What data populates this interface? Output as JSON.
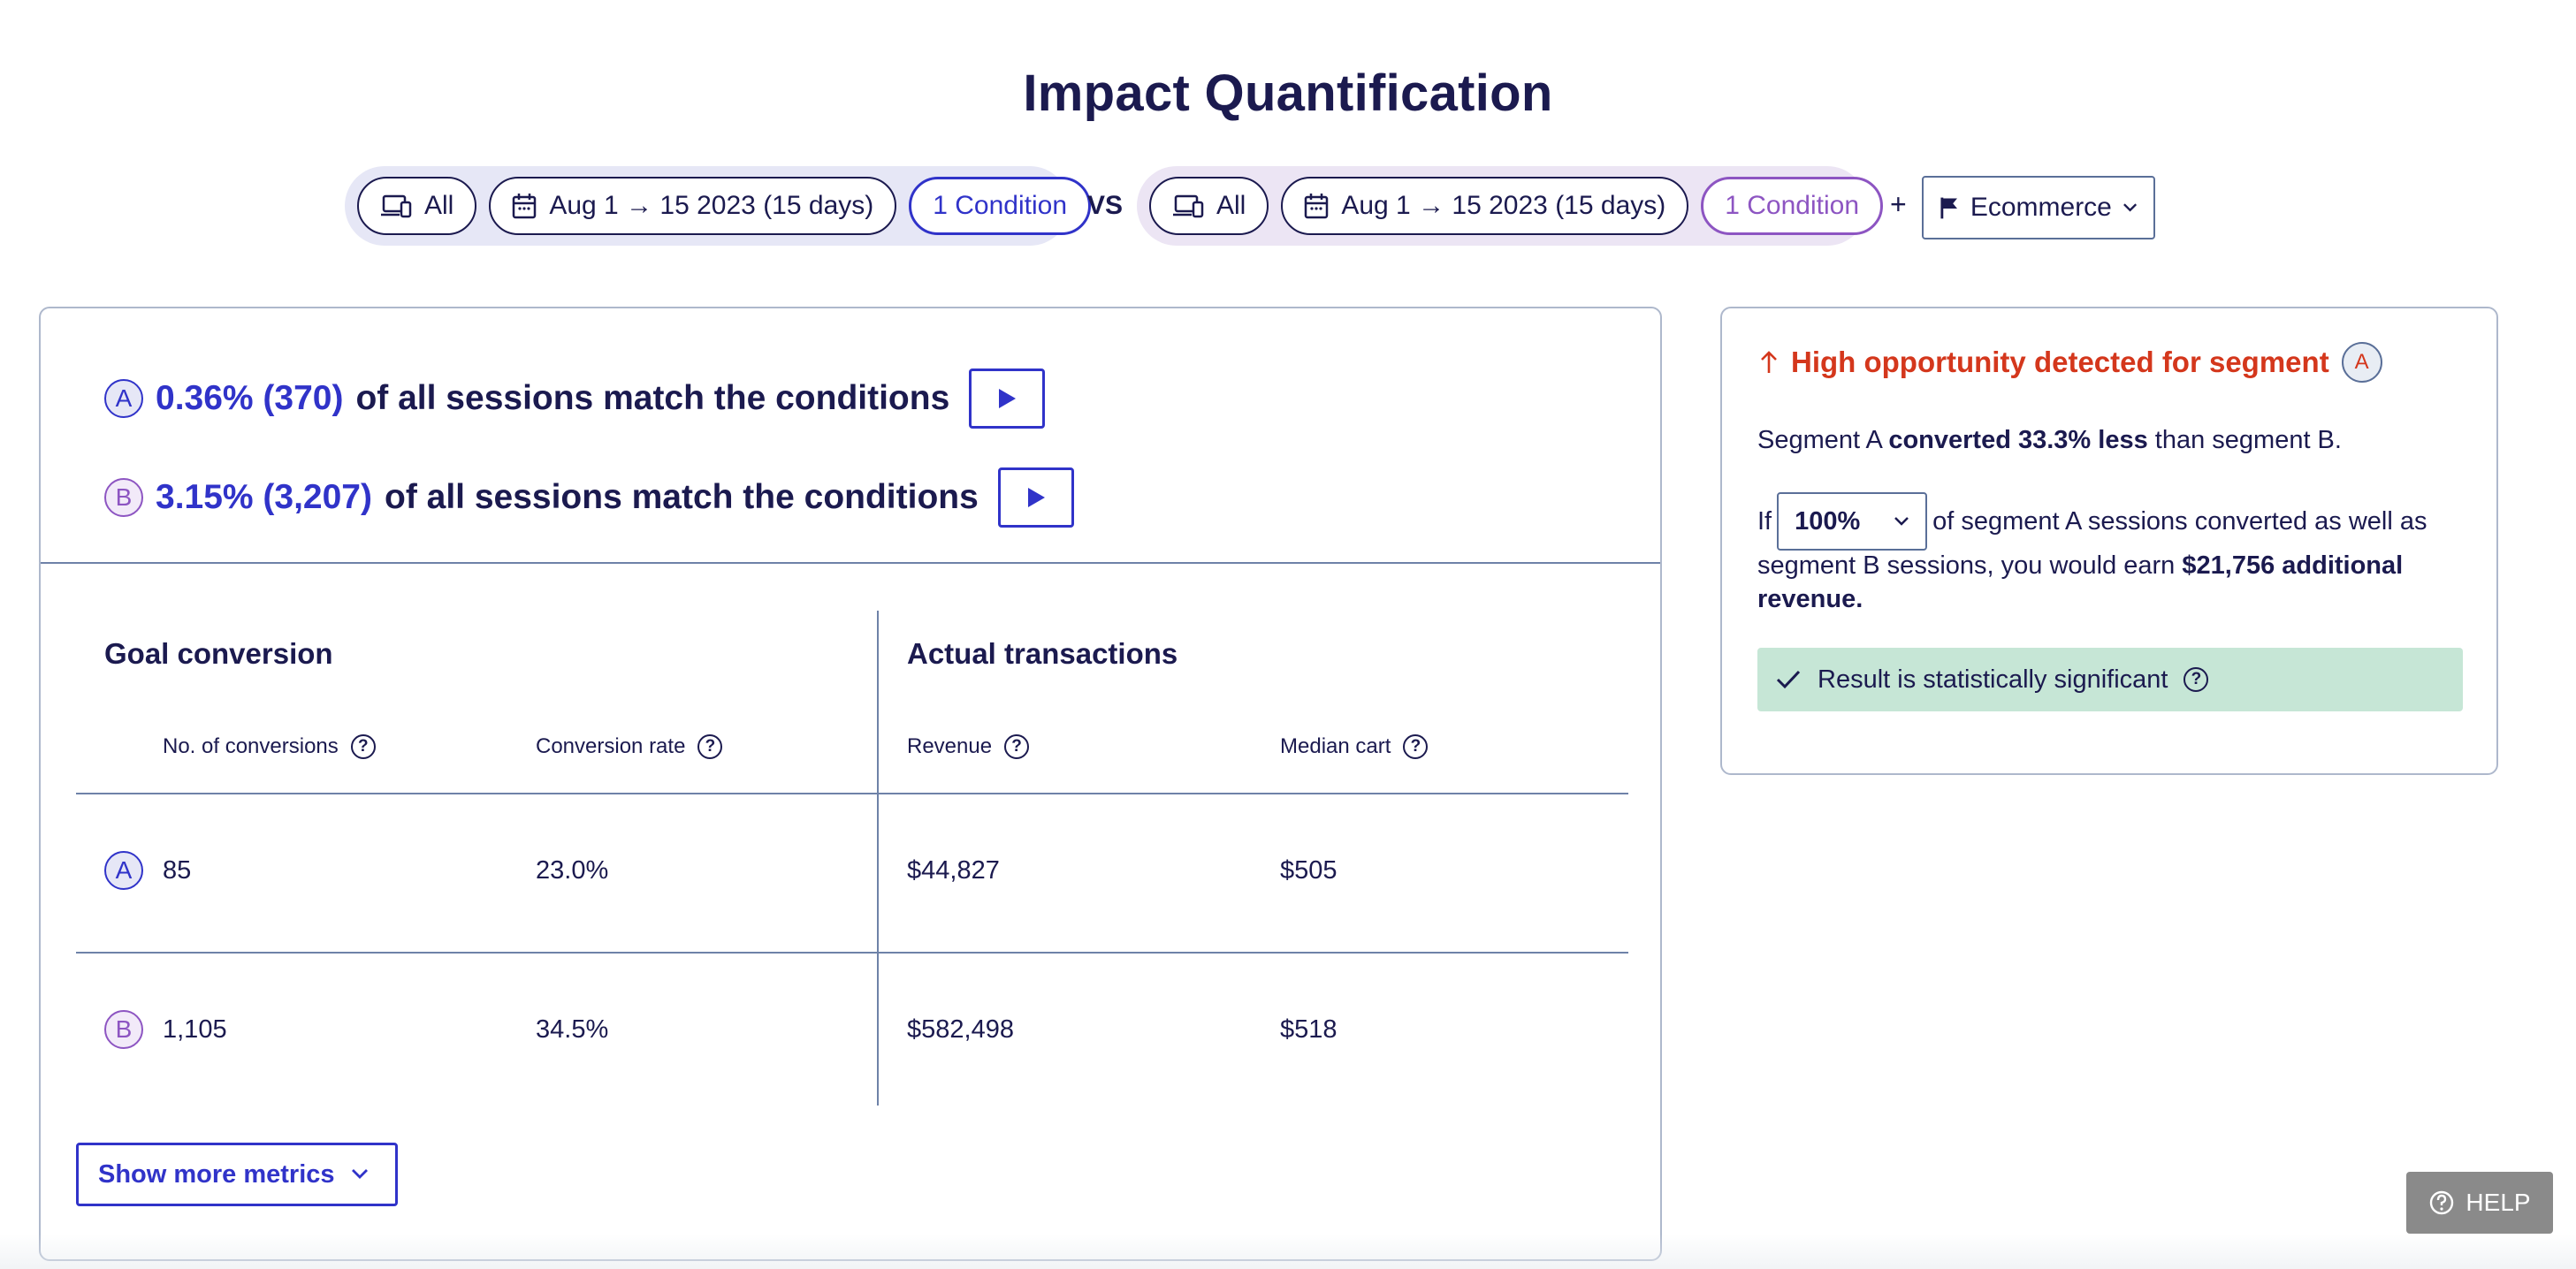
{
  "page": {
    "title": "Impact Quantification"
  },
  "filters": {
    "segment_a": {
      "device": "All",
      "date_range": "Aug 1 → 15 2023 (15 days)",
      "condition": "1 Condition"
    },
    "vs_label": "VS",
    "segment_b": {
      "device": "All",
      "date_range": "Aug 1 → 15 2023 (15 days)",
      "condition": "1 Condition"
    },
    "plus_label": "+",
    "goal": {
      "label": "Ecommerce"
    }
  },
  "sessions": {
    "a": {
      "badge": "A",
      "highlight": "0.36% (370)",
      "text": "of all sessions match the conditions"
    },
    "b": {
      "badge": "B",
      "highlight": "3.15% (3,207)",
      "text": "of all sessions match the conditions"
    }
  },
  "metrics": {
    "goal_conversion_heading": "Goal conversion",
    "actual_transactions_heading": "Actual transactions",
    "columns": [
      "No. of conversions",
      "Conversion rate",
      "Revenue",
      "Median cart"
    ],
    "rows": [
      {
        "badge": "A",
        "conversions": "85",
        "rate": "23.0%",
        "revenue": "$44,827",
        "median_cart": "$505"
      },
      {
        "badge": "B",
        "conversions": "1,105",
        "rate": "34.5%",
        "revenue": "$582,498",
        "median_cart": "$518"
      }
    ],
    "show_more_label": "Show more metrics"
  },
  "opportunity": {
    "title": "High opportunity detected for segment",
    "badge": "A",
    "line1_pre": "Segment A ",
    "line1_bold": "converted 33.3% less",
    "line1_post": " than segment B.",
    "if_label": "If",
    "select_value": "100%",
    "line2_a": "of segment A sessions converted as well as",
    "line2_b_pre": "segment B sessions, you would earn ",
    "line2_b_bold": "$21,756 additional",
    "line2_c_bold": "revenue.",
    "significance": "Result is statistically significant"
  },
  "help": {
    "label": "HELP"
  },
  "colors": {
    "segment_a": "#3033c9",
    "segment_b": "#8d55c2",
    "navy": "#1b1a4f",
    "alert": "#d4371c",
    "success_bg": "#c6e6d6"
  }
}
